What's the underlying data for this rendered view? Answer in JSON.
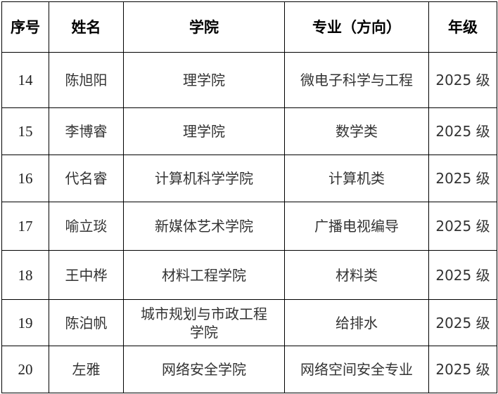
{
  "table": {
    "headers": [
      "序号",
      "姓名",
      "学院",
      "专业（方向）",
      "年级"
    ],
    "rows": [
      [
        "14",
        "陈旭阳",
        "理学院",
        "微电子科学与工程",
        "2025 级"
      ],
      [
        "15",
        "李博睿",
        "理学院",
        "数学类",
        "2025 级"
      ],
      [
        "16",
        "代名睿",
        "计算机科学学院",
        "计算机类",
        "2025 级"
      ],
      [
        "17",
        "喻立琰",
        "新媒体艺术学院",
        "广播电视编导",
        "2025 级"
      ],
      [
        "18",
        "王中桦",
        "材料工程学院",
        "材料类",
        "2025 级"
      ],
      [
        "19",
        "陈泊帆",
        "城市规划与市政工程学院",
        "给排水",
        "2025 级"
      ],
      [
        "20",
        "左雅",
        "网络安全学院",
        "网络空间安全专业",
        "2025 级"
      ]
    ]
  }
}
